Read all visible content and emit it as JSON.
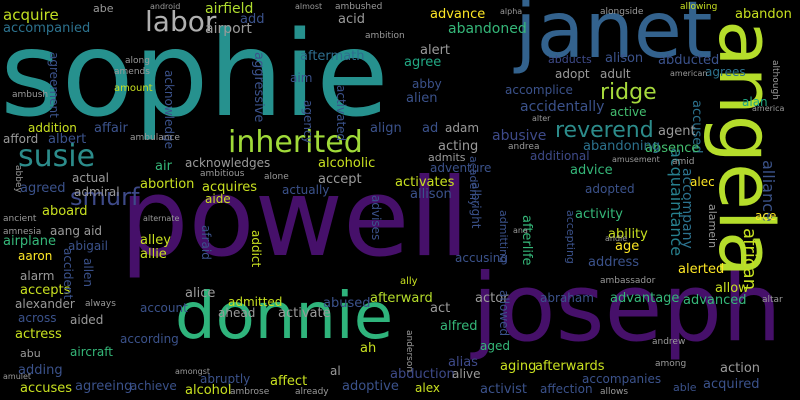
{
  "words": [
    {
      "text": "powell",
      "color": "#46106a"
    },
    {
      "text": "sophie",
      "color": "#26918e"
    },
    {
      "text": "joseph",
      "color": "#46106a"
    },
    {
      "text": "janet",
      "color": "#33628d"
    },
    {
      "text": "angela",
      "color": "#b5dd2b"
    },
    {
      "text": "donnie",
      "color": "#2fb47c"
    },
    {
      "text": "inherited",
      "color": "#a0da39"
    },
    {
      "text": "susie",
      "color": "#2c8c8b"
    },
    {
      "text": "smurf",
      "color": "#3e4a89"
    },
    {
      "text": "labor",
      "color": "#b0b0b0"
    },
    {
      "text": "ridge",
      "color": "#a6d93c"
    },
    {
      "text": "reverend",
      "color": "#2c8c8b"
    },
    {
      "text": "acquaintance",
      "color": "#27808e"
    },
    {
      "text": "african",
      "color": "#c6e020"
    },
    {
      "text": "alliance",
      "color": "#3b5288"
    },
    {
      "text": "accompany",
      "color": "#2c728e"
    },
    {
      "text": "acquire",
      "color": "#c2df23"
    },
    {
      "text": "abe",
      "color": "#9a9a9a"
    },
    {
      "text": "airfield",
      "color": "#b0dd2f"
    },
    {
      "text": "accompanied",
      "color": "#2c728e"
    },
    {
      "text": "airport",
      "color": "#9a9a9a"
    },
    {
      "text": "add",
      "color": "#3b528b"
    },
    {
      "text": "acid",
      "color": "#9a9a9a"
    },
    {
      "text": "aftermath",
      "color": "#2e6e8e"
    },
    {
      "text": "abandoned",
      "color": "#35b779"
    },
    {
      "text": "advance",
      "color": "#fde725"
    },
    {
      "text": "abandon",
      "color": "#c8e020"
    },
    {
      "text": "alert",
      "color": "#9a9a9a"
    },
    {
      "text": "agree",
      "color": "#22a884"
    },
    {
      "text": "abducts",
      "color": "#3e4a89"
    },
    {
      "text": "alison",
      "color": "#3b528b"
    },
    {
      "text": "abducted",
      "color": "#3b528b"
    },
    {
      "text": "adopt",
      "color": "#9a9a9a"
    },
    {
      "text": "adult",
      "color": "#9a9a9a"
    },
    {
      "text": "agrees",
      "color": "#2c728e"
    },
    {
      "text": "alan",
      "color": "#22a884"
    },
    {
      "text": "accidentally",
      "color": "#3b528b"
    },
    {
      "text": "active",
      "color": "#44bf70"
    },
    {
      "text": "accused",
      "color": "#2c728e"
    },
    {
      "text": "agent",
      "color": "#9a9a9a"
    },
    {
      "text": "absence",
      "color": "#44bf70"
    },
    {
      "text": "abandoning",
      "color": "#2c728e"
    },
    {
      "text": "acting",
      "color": "#9a9a9a"
    },
    {
      "text": "adam",
      "color": "#9a9a9a"
    },
    {
      "text": "abusive",
      "color": "#3e4a89"
    },
    {
      "text": "admits",
      "color": "#9a9a9a"
    },
    {
      "text": "additional",
      "color": "#3e4a89"
    },
    {
      "text": "advice",
      "color": "#35b779"
    },
    {
      "text": "alec",
      "color": "#fde725"
    },
    {
      "text": "adopted",
      "color": "#3b528b"
    },
    {
      "text": "activity",
      "color": "#35b779"
    },
    {
      "text": "ace",
      "color": "#fde725"
    },
    {
      "text": "alamein",
      "color": "#9a9a9a"
    },
    {
      "text": "ability",
      "color": "#c8e020"
    },
    {
      "text": "age",
      "color": "#fde725"
    },
    {
      "text": "address",
      "color": "#3b528b"
    },
    {
      "text": "alerted",
      "color": "#fde725"
    },
    {
      "text": "allow",
      "color": "#c8e020"
    },
    {
      "text": "advantage",
      "color": "#35b779"
    },
    {
      "text": "advanced",
      "color": "#35b779"
    },
    {
      "text": "abraham",
      "color": "#3b528b"
    },
    {
      "text": "actor",
      "color": "#9a9a9a"
    },
    {
      "text": "afterward",
      "color": "#b5dd2b"
    },
    {
      "text": "abused",
      "color": "#3b528b"
    },
    {
      "text": "act",
      "color": "#9a9a9a"
    },
    {
      "text": "alfred",
      "color": "#35b779"
    },
    {
      "text": "aged",
      "color": "#35b779"
    },
    {
      "text": "alias",
      "color": "#3e4a89"
    },
    {
      "text": "abduction",
      "color": "#3e4a89"
    },
    {
      "text": "alive",
      "color": "#9a9a9a"
    },
    {
      "text": "aging",
      "color": "#c8e020"
    },
    {
      "text": "afterwards",
      "color": "#c8e020"
    },
    {
      "text": "action",
      "color": "#9a9a9a"
    },
    {
      "text": "accompanies",
      "color": "#3b528b"
    },
    {
      "text": "acquired",
      "color": "#3b528b"
    },
    {
      "text": "able",
      "color": "#3b528b"
    },
    {
      "text": "activist",
      "color": "#3b528b"
    },
    {
      "text": "affection",
      "color": "#3b528b"
    },
    {
      "text": "alex",
      "color": "#c8e020"
    },
    {
      "text": "adoptive",
      "color": "#3b528b"
    },
    {
      "text": "ah",
      "color": "#c8e020"
    },
    {
      "text": "al",
      "color": "#9a9a9a"
    },
    {
      "text": "affect",
      "color": "#c8e020"
    },
    {
      "text": "abruptly",
      "color": "#3b528b"
    },
    {
      "text": "achieve",
      "color": "#3b528b"
    },
    {
      "text": "alcohol",
      "color": "#c8e020"
    },
    {
      "text": "agreeing",
      "color": "#3b528b"
    },
    {
      "text": "accuses",
      "color": "#c8e020"
    },
    {
      "text": "adding",
      "color": "#3b528b"
    },
    {
      "text": "abu",
      "color": "#9a9a9a"
    },
    {
      "text": "aircraft",
      "color": "#35b779"
    },
    {
      "text": "actress",
      "color": "#c8e020"
    },
    {
      "text": "aided",
      "color": "#9a9a9a"
    },
    {
      "text": "across",
      "color": "#3b528b"
    },
    {
      "text": "alexander",
      "color": "#9a9a9a"
    },
    {
      "text": "accepts",
      "color": "#c8e020"
    },
    {
      "text": "alarm",
      "color": "#9a9a9a"
    },
    {
      "text": "aaron",
      "color": "#fde725"
    },
    {
      "text": "airplane",
      "color": "#35b779"
    },
    {
      "text": "aboard",
      "color": "#c8e020"
    },
    {
      "text": "agreed",
      "color": "#3b528b"
    },
    {
      "text": "admiral",
      "color": "#9a9a9a"
    },
    {
      "text": "actual",
      "color": "#9a9a9a"
    },
    {
      "text": "abortion",
      "color": "#c8e020"
    },
    {
      "text": "acquires",
      "color": "#c8e020"
    },
    {
      "text": "aide",
      "color": "#c8e020"
    },
    {
      "text": "actually",
      "color": "#3b528b"
    },
    {
      "text": "accept",
      "color": "#9a9a9a"
    },
    {
      "text": "activates",
      "color": "#c8e020"
    },
    {
      "text": "allison",
      "color": "#3b528b"
    },
    {
      "text": "adventure",
      "color": "#3b528b"
    },
    {
      "text": "alcoholic",
      "color": "#c8e020"
    },
    {
      "text": "acknowledges",
      "color": "#9a9a9a"
    },
    {
      "text": "air",
      "color": "#35b779"
    },
    {
      "text": "affair",
      "color": "#3b528b"
    },
    {
      "text": "addition",
      "color": "#c8e020"
    },
    {
      "text": "afford",
      "color": "#9a9a9a"
    },
    {
      "text": "albert",
      "color": "#3b528b"
    },
    {
      "text": "align",
      "color": "#3b528b"
    },
    {
      "text": "ad",
      "color": "#3b528b"
    },
    {
      "text": "alice",
      "color": "#9a9a9a"
    },
    {
      "text": "admitted",
      "color": "#c8e020"
    },
    {
      "text": "ahead",
      "color": "#9a9a9a"
    },
    {
      "text": "activate",
      "color": "#9a9a9a"
    },
    {
      "text": "account",
      "color": "#3b528b"
    },
    {
      "text": "according",
      "color": "#3b528b"
    },
    {
      "text": "accusing",
      "color": "#3b528b"
    },
    {
      "text": "alley",
      "color": "#c8e020"
    },
    {
      "text": "allie",
      "color": "#c8e020"
    },
    {
      "text": "addict",
      "color": "#c8e020"
    },
    {
      "text": "afraid",
      "color": "#3b528b"
    },
    {
      "text": "aang aid",
      "color": "#9a9a9a"
    },
    {
      "text": "abigail",
      "color": "#3b528b"
    },
    {
      "text": "accident",
      "color": "#3b528b"
    },
    {
      "text": "allen",
      "color": "#3b528b"
    },
    {
      "text": "afterlife",
      "color": "#35b779"
    },
    {
      "text": "admitting",
      "color": "#3b528b"
    },
    {
      "text": "accepting",
      "color": "#3b528b"
    },
    {
      "text": "allowed",
      "color": "#3b528b"
    },
    {
      "text": "albright",
      "color": "#3b528b"
    },
    {
      "text": "academy",
      "color": "#3b528b"
    },
    {
      "text": "advises",
      "color": "#3b528b"
    },
    {
      "text": "aggressive",
      "color": "#3b528b"
    },
    {
      "text": "acknowledge",
      "color": "#3b528b"
    },
    {
      "text": "agency",
      "color": "#3b528b"
    },
    {
      "text": "activated",
      "color": "#3b528b"
    },
    {
      "text": "aim",
      "color": "#3b528b"
    },
    {
      "text": "alien",
      "color": "#3b528b"
    },
    {
      "text": "abby",
      "color": "#3b528b"
    },
    {
      "text": "accomplice",
      "color": "#3b528b"
    },
    {
      "text": "agreement",
      "color": "#3b528b"
    },
    {
      "text": "amount",
      "color": "#c8e020"
    },
    {
      "text": "ambush",
      "color": "#9a9a9a"
    },
    {
      "text": "ambushed",
      "color": "#9a9a9a"
    },
    {
      "text": "ambition",
      "color": "#9a9a9a"
    },
    {
      "text": "along",
      "color": "#9a9a9a"
    },
    {
      "text": "amends",
      "color": "#9a9a9a"
    },
    {
      "text": "ambulance",
      "color": "#9a9a9a"
    },
    {
      "text": "ambitious",
      "color": "#9a9a9a"
    },
    {
      "text": "alone",
      "color": "#9a9a9a"
    },
    {
      "text": "alternate",
      "color": "#9a9a9a"
    },
    {
      "text": "amnesia",
      "color": "#9a9a9a"
    },
    {
      "text": "ancient",
      "color": "#9a9a9a"
    },
    {
      "text": "abbey",
      "color": "#9a9a9a"
    },
    {
      "text": "almost",
      "color": "#9a9a9a"
    },
    {
      "text": "android",
      "color": "#9a9a9a"
    },
    {
      "text": "alpha",
      "color": "#9a9a9a"
    },
    {
      "text": "alongside",
      "color": "#9a9a9a"
    },
    {
      "text": "allowing",
      "color": "#c8e020"
    },
    {
      "text": "american",
      "color": "#9a9a9a"
    },
    {
      "text": "although",
      "color": "#9a9a9a"
    },
    {
      "text": "america",
      "color": "#9a9a9a"
    },
    {
      "text": "amusement",
      "color": "#9a9a9a"
    },
    {
      "text": "amid",
      "color": "#9a9a9a"
    },
    {
      "text": "andrea",
      "color": "#9a9a9a"
    },
    {
      "text": "alter",
      "color": "#9a9a9a"
    },
    {
      "text": "ana",
      "color": "#9a9a9a"
    },
    {
      "text": "andie",
      "color": "#9a9a9a"
    },
    {
      "text": "ambassador",
      "color": "#9a9a9a"
    },
    {
      "text": "altar",
      "color": "#9a9a9a"
    },
    {
      "text": "ally",
      "color": "#c8e020"
    },
    {
      "text": "always",
      "color": "#9a9a9a"
    },
    {
      "text": "anderson",
      "color": "#9a9a9a"
    },
    {
      "text": "andrew",
      "color": "#9a9a9a"
    },
    {
      "text": "among",
      "color": "#9a9a9a"
    },
    {
      "text": "amongst",
      "color": "#9a9a9a"
    },
    {
      "text": "ambrose",
      "color": "#9a9a9a"
    },
    {
      "text": "already",
      "color": "#9a9a9a"
    },
    {
      "text": "allows",
      "color": "#9a9a9a"
    },
    {
      "text": "amulet",
      "color": "#9a9a9a"
    }
  ]
}
